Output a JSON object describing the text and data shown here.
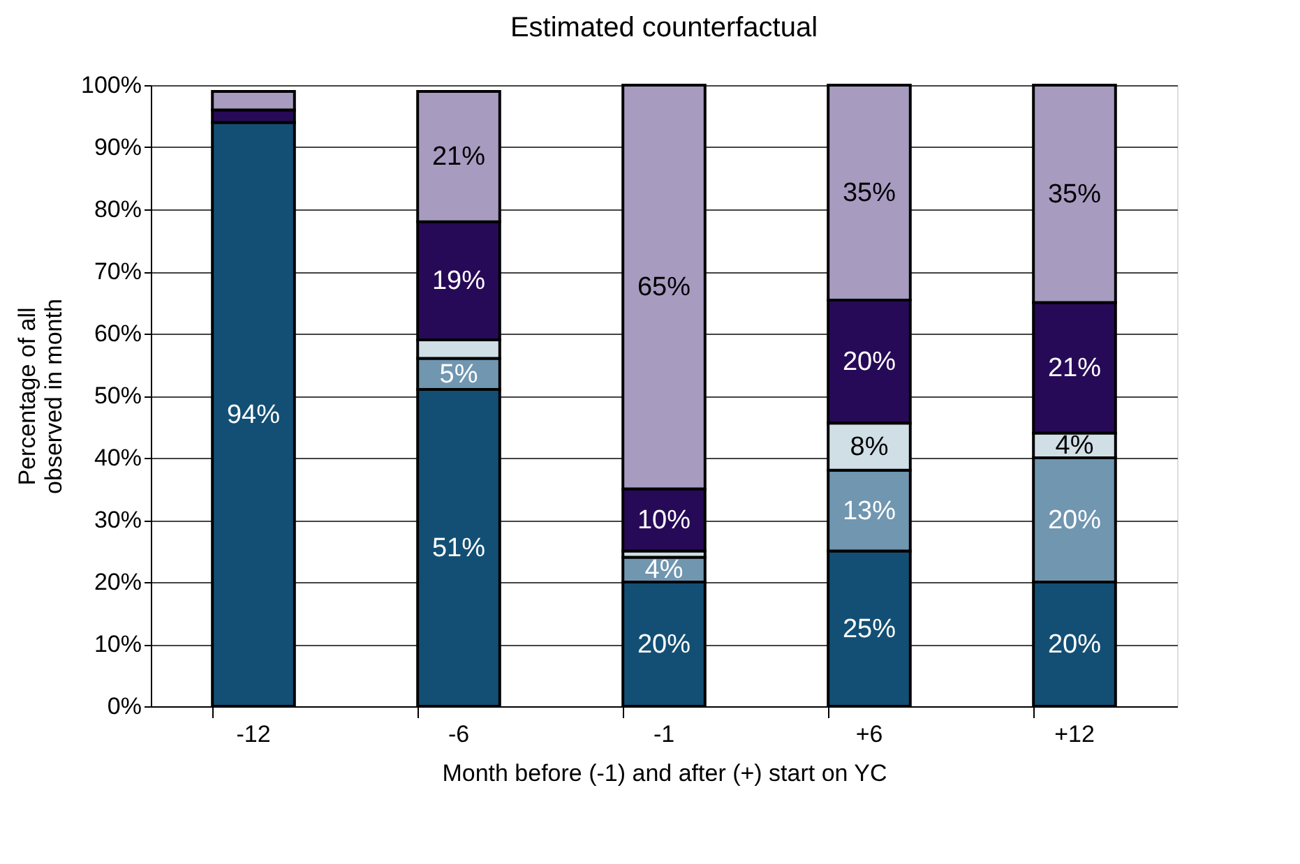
{
  "chart_data": {
    "type": "bar",
    "stacked": true,
    "title": "Estimated counterfactual",
    "xlabel": "Month before (-1) and after (+) start on YC",
    "ylabel": "Percentage of all\nobserved  in month",
    "categories": [
      "-12",
      "-6",
      "-1",
      "+6",
      "+12"
    ],
    "series": [
      {
        "color": "#134f74",
        "values": [
          94,
          51,
          20,
          25,
          20
        ],
        "value_labels": [
          "94%",
          "51%",
          "20%",
          "25%",
          "20%"
        ]
      },
      {
        "color": "#7096b0",
        "values": [
          null,
          5,
          4,
          13,
          20
        ],
        "value_labels": [
          null,
          "5%",
          "4%",
          "13%",
          "20%"
        ]
      },
      {
        "color": "#d0dee6",
        "values": [
          null,
          3,
          1,
          7.6,
          4
        ],
        "value_labels": [
          null,
          null,
          null,
          "8%",
          "4%"
        ]
      },
      {
        "color": "#270a57",
        "values": [
          2,
          19,
          10,
          19.8,
          21
        ],
        "value_labels": [
          null,
          "19%",
          "10%",
          "20%",
          "21%"
        ]
      },
      {
        "color": "#a79bc0",
        "values": [
          3,
          21,
          65,
          34.6,
          35
        ],
        "value_labels": [
          null,
          "21%",
          "65%",
          "35%",
          "35%"
        ]
      }
    ],
    "ylim": [
      0,
      100
    ],
    "yticks": [
      {
        "value": 0,
        "label": "0%"
      },
      {
        "value": 10,
        "label": "10%"
      },
      {
        "value": 20,
        "label": "20%"
      },
      {
        "value": 30,
        "label": "30%"
      },
      {
        "value": 40,
        "label": "40%"
      },
      {
        "value": 50,
        "label": "50%"
      },
      {
        "value": 60,
        "label": "60%"
      },
      {
        "value": 70,
        "label": "70%"
      },
      {
        "value": 80,
        "label": "80%"
      },
      {
        "value": 90,
        "label": "90%"
      },
      {
        "value": 100,
        "label": "100%"
      }
    ],
    "grid": "y",
    "legend": false
  }
}
